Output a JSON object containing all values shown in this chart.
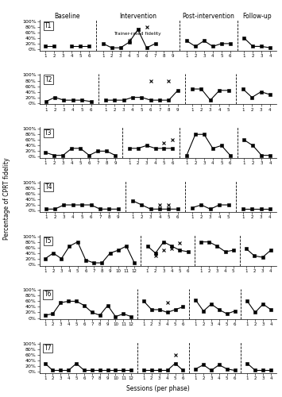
{
  "phases": [
    "Baseline",
    "Intervention",
    "Post-intervention",
    "Follow-up"
  ],
  "trainers": [
    {
      "label": "T1",
      "observer": {
        "baseline": [
          10,
          10,
          null,
          10,
          10,
          10
        ],
        "intervention": [
          20,
          5,
          5,
          25,
          70,
          5,
          20,
          null,
          null
        ],
        "post": [
          30,
          10,
          30,
          10,
          20,
          20
        ],
        "followup": [
          40,
          10,
          10,
          5
        ]
      },
      "trainer": {
        "intervention": [
          null,
          null,
          null,
          30,
          70,
          80,
          null,
          null,
          null
        ]
      },
      "baseline_n": 6,
      "intervention_n": 9,
      "post_n": 6,
      "followup_n": 4
    },
    {
      "label": "T2",
      "observer": {
        "baseline": [
          5,
          20,
          10,
          10,
          10,
          5
        ],
        "intervention": [
          10,
          10,
          10,
          20,
          20,
          10,
          10,
          10,
          45
        ],
        "post": [
          50,
          50,
          10,
          45,
          45
        ],
        "followup": [
          50,
          20,
          40,
          30
        ]
      },
      "trainer": {
        "intervention": [
          null,
          null,
          null,
          null,
          null,
          80,
          null,
          80,
          null
        ]
      },
      "baseline_n": 6,
      "intervention_n": 9,
      "post_n": 5,
      "followup_n": 4
    },
    {
      "label": "T3",
      "observer": {
        "baseline": [
          15,
          5,
          5,
          30,
          30,
          5,
          20,
          20,
          5
        ],
        "intervention": [
          30,
          30,
          40,
          30,
          30,
          30
        ],
        "post": [
          5,
          80,
          80,
          30,
          40,
          5
        ],
        "followup": [
          60,
          40,
          5,
          5
        ]
      },
      "trainer": {
        "intervention": [
          null,
          null,
          null,
          null,
          50,
          60
        ]
      },
      "baseline_n": 9,
      "intervention_n": 6,
      "post_n": 6,
      "followup_n": 4
    },
    {
      "label": "T4",
      "observer": {
        "baseline": [
          5,
          5,
          20,
          20,
          20,
          20,
          5,
          5,
          5
        ],
        "intervention": [
          35,
          20,
          5,
          5,
          5,
          5
        ],
        "post": [
          10,
          20,
          5,
          20,
          20
        ],
        "followup": [
          5,
          5,
          5,
          5
        ]
      },
      "trainer": {
        "intervention": [
          null,
          null,
          null,
          20,
          20,
          null
        ]
      },
      "baseline_n": 9,
      "intervention_n": 6,
      "post_n": 5,
      "followup_n": 4
    },
    {
      "label": "T5",
      "observer": {
        "baseline": [
          20,
          40,
          20,
          65,
          80,
          15,
          5,
          5,
          40,
          50,
          65,
          5
        ],
        "intervention": [
          65,
          40,
          80,
          65,
          50,
          45
        ],
        "post": [
          80,
          80,
          65,
          45,
          50
        ],
        "followup": [
          55,
          30,
          25,
          50
        ]
      },
      "trainer": {
        "intervention": [
          null,
          30,
          50,
          55,
          75,
          null
        ]
      },
      "baseline_n": 12,
      "intervention_n": 6,
      "post_n": 5,
      "followup_n": 4
    },
    {
      "label": "T6",
      "observer": {
        "baseline": [
          10,
          15,
          55,
          60,
          60,
          45,
          20,
          10,
          45,
          5,
          15,
          5
        ],
        "intervention": [
          60,
          30,
          30,
          20,
          30,
          40
        ],
        "post": [
          65,
          25,
          50,
          30,
          15,
          25
        ],
        "followup": [
          60,
          20,
          50,
          30
        ]
      },
      "trainer": {
        "intervention": [
          null,
          null,
          null,
          55,
          null,
          null
        ]
      },
      "baseline_n": 12,
      "intervention_n": 6,
      "post_n": 6,
      "followup_n": 4
    },
    {
      "label": "T7",
      "observer": {
        "baseline": [
          30,
          5,
          5,
          5,
          30,
          5,
          5,
          5,
          5,
          5,
          5,
          5
        ],
        "intervention": [
          5,
          5,
          5,
          5,
          30,
          5
        ],
        "post": [
          10,
          25,
          5,
          25,
          10,
          5
        ],
        "followup": [
          30,
          5,
          5,
          5
        ]
      },
      "trainer": {
        "intervention": [
          null,
          null,
          null,
          null,
          60,
          null
        ]
      },
      "baseline_n": 12,
      "intervention_n": 6,
      "post_n": 6,
      "followup_n": 4
    }
  ],
  "yticks": [
    0,
    20,
    40,
    60,
    80,
    100
  ],
  "ytick_labels": [
    "0%",
    "20%",
    "40%",
    "60%",
    "80%",
    "100%"
  ],
  "annotation_text": "Trainer-rated fidelity",
  "ylabel": "Percentage of CPRT fidelity",
  "xlabel": "Sessions (per phase)"
}
